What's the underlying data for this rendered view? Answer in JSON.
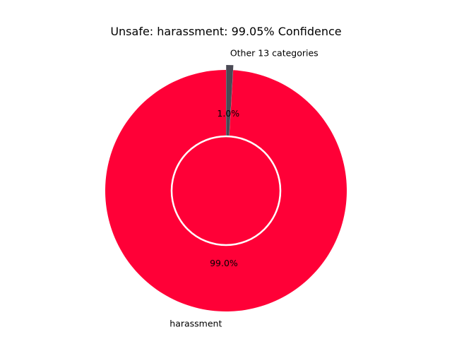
{
  "chart_data": {
    "type": "pie",
    "variant": "donut",
    "title": "Unsafe: harassment: 99.05% Confidence",
    "slices": [
      {
        "label": "harassment",
        "value": 99.05,
        "pct_text": "99.0%",
        "color": "#ff0037",
        "exploded": false
      },
      {
        "label": "Other 13 categories",
        "value": 0.95,
        "pct_text": "1.0%",
        "color": "#4a4a55",
        "exploded": true
      }
    ],
    "start_angle_deg": 90,
    "direction": "counterclockwise",
    "hole_edge_color": "#ffffff"
  }
}
